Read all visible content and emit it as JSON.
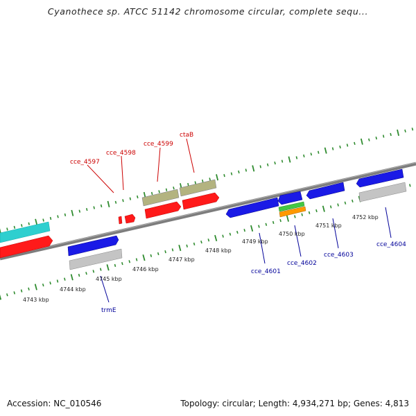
{
  "title": "Cyanothece sp. ATCC 51142 chromosome circular, complete sequ...",
  "footer": {
    "accession": "Accession: NC_010546",
    "summary": "Topology: circular; Length: 4,934,271 bp; Genes: 4,813"
  },
  "colors": {
    "backbone": "#7a7a7a",
    "tick": "#2e8b2e",
    "forward_label": "#cc0000",
    "reverse_label": "#000099",
    "cds_red": "#ff1a1a",
    "cds_blue": "#1a1ae6",
    "rna_olive": "#b3b380",
    "pseudo_gray": "#c4c4c4",
    "teal": "#2fcfcf",
    "green": "#44c844",
    "orange": "#ff9900"
  },
  "kbp_labels": [
    {
      "id": "kbp-4743",
      "text": "4743 kbp"
    },
    {
      "id": "kbp-4744",
      "text": "4744 kbp"
    },
    {
      "id": "kbp-4745",
      "text": "4745 kbp"
    },
    {
      "id": "kbp-4746",
      "text": "4746 kbp"
    },
    {
      "id": "kbp-4747",
      "text": "4747 kbp"
    },
    {
      "id": "kbp-4748",
      "text": "4748 kbp"
    },
    {
      "id": "kbp-4749",
      "text": "4749 kbp"
    },
    {
      "id": "kbp-4750",
      "text": "4750 kbp"
    },
    {
      "id": "kbp-4751",
      "text": "4751 kbp"
    },
    {
      "id": "kbp-4752",
      "text": "4752 kbp"
    }
  ],
  "gene_labels": [
    {
      "id": "gene-cce-4597",
      "text": "cce_4597"
    },
    {
      "id": "gene-cce-4598",
      "text": "cce_4598"
    },
    {
      "id": "gene-cce-4599",
      "text": "cce_4599"
    },
    {
      "id": "gene-ctab",
      "text": "ctaB"
    },
    {
      "id": "gene-trme",
      "text": "trmE"
    },
    {
      "id": "gene-cce-4601",
      "text": "cce_4601"
    },
    {
      "id": "gene-cce-4602",
      "text": "cce_4602"
    },
    {
      "id": "gene-cce-4603",
      "text": "cce_4603"
    },
    {
      "id": "gene-cce-4604",
      "text": "cce_4604"
    }
  ]
}
